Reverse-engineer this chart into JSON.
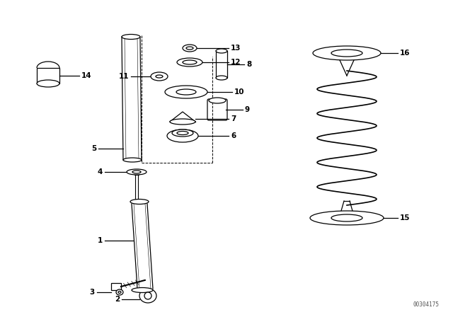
{
  "background_color": "#ffffff",
  "line_color": "#000000",
  "watermark": "00304175",
  "fig_width": 6.4,
  "fig_height": 4.48,
  "dpi": 100
}
